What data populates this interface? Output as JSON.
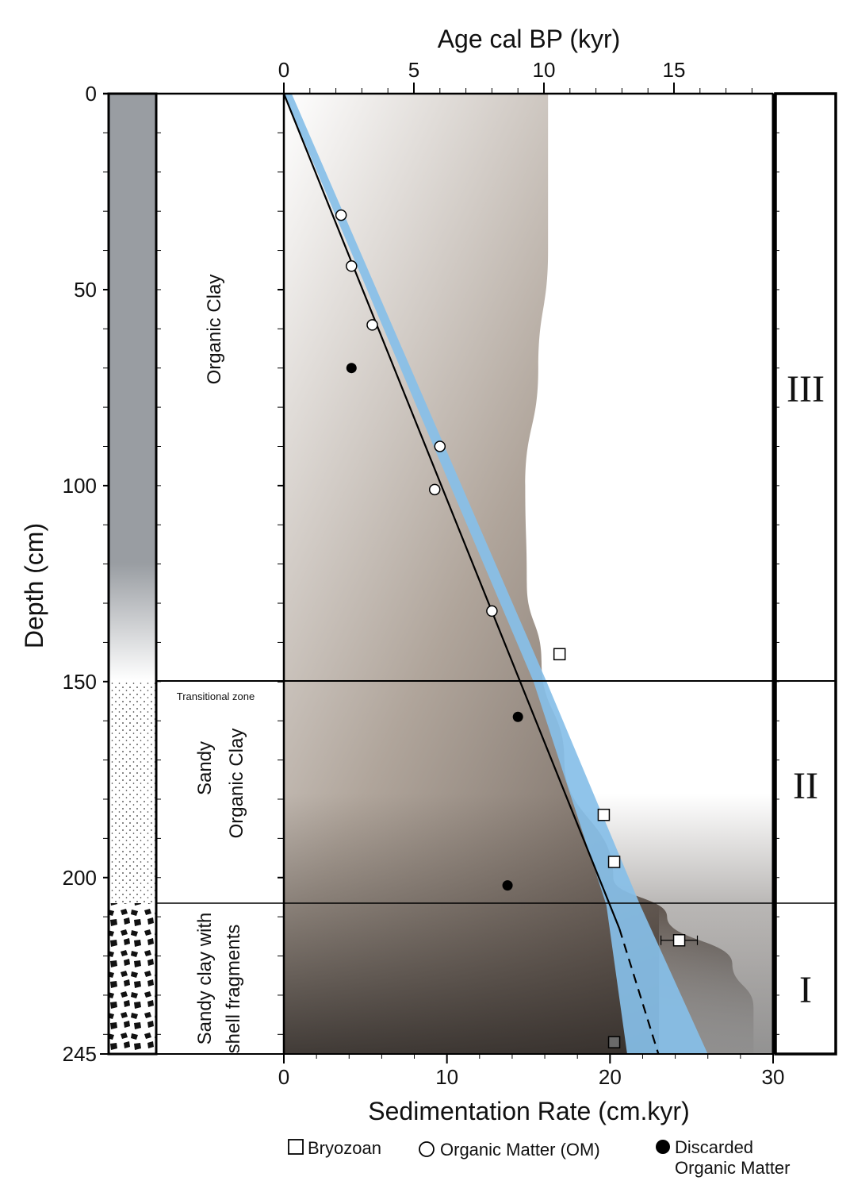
{
  "chart_data": {
    "type": "scatter",
    "title": "",
    "top_axis": {
      "label": "Age cal BP (kyr)",
      "range": [
        0,
        19
      ],
      "ticks": [
        "0",
        "5",
        "10",
        "15"
      ]
    },
    "bottom_axis": {
      "label": "Sedimentation Rate (cm.kyr)",
      "range": [
        0,
        30
      ],
      "ticks": [
        "0",
        "10",
        "20",
        "30"
      ]
    },
    "left_axis": {
      "label": "Depth (cm)",
      "range": [
        0,
        245
      ],
      "ticks": [
        "0",
        "50",
        "100",
        "150",
        "200",
        "245"
      ],
      "inverted": true
    },
    "lithology": {
      "organic_clay": "Organic Clay",
      "transitional": "Transitional zone",
      "sandy_organic_line1": "Sandy",
      "sandy_organic_line2": "Organic Clay",
      "shell_line1": "Sandy clay with",
      "shell_line2": "shell fragments"
    },
    "units": [
      {
        "label": "III",
        "depth_range": [
          0,
          150
        ]
      },
      {
        "label": "II",
        "depth_range": [
          150,
          207
        ]
      },
      {
        "label": "I",
        "depth_range": [
          207,
          245
        ]
      }
    ],
    "series": [
      {
        "name": "Bryozoan",
        "marker": "square",
        "points": [
          {
            "age": 10.6,
            "depth": 143
          },
          {
            "age": 12.3,
            "depth": 184
          },
          {
            "age": 12.7,
            "depth": 196
          },
          {
            "age": 15.2,
            "depth": 216,
            "xerr": 0.7
          },
          {
            "age": 12.7,
            "depth": 242
          }
        ]
      },
      {
        "name": "Organic Matter (OM)",
        "marker": "open-circle",
        "points": [
          {
            "age": 2.2,
            "depth": 31
          },
          {
            "age": 2.6,
            "depth": 44
          },
          {
            "age": 3.4,
            "depth": 59
          },
          {
            "age": 6.0,
            "depth": 90
          },
          {
            "age": 5.8,
            "depth": 101
          },
          {
            "age": 8.0,
            "depth": 132
          }
        ]
      },
      {
        "name": "Discarded Organic Matter",
        "marker": "filled-circle",
        "points": [
          {
            "age": 2.6,
            "depth": 70
          },
          {
            "age": 9.0,
            "depth": 159
          },
          {
            "age": 8.6,
            "depth": 202
          }
        ]
      }
    ],
    "age_model": {
      "line": [
        {
          "age": 0,
          "depth": 0
        },
        {
          "age": 12.9,
          "depth": 213
        }
      ],
      "extrapolated": [
        {
          "age": 12.9,
          "depth": 213
        },
        {
          "age": 14.4,
          "depth": 245
        }
      ],
      "confidence_left": [
        {
          "age": 0,
          "depth": 0
        },
        {
          "age": 9.6,
          "depth": 150
        },
        {
          "age": 12.4,
          "depth": 207
        },
        {
          "age": 13.2,
          "depth": 245
        }
      ],
      "confidence_right": [
        {
          "age": 0.3,
          "depth": 0
        },
        {
          "age": 10.1,
          "depth": 150
        },
        {
          "age": 13.7,
          "depth": 207
        },
        {
          "age": 16.3,
          "depth": 245
        }
      ]
    },
    "sedimentation_rate_profile": [
      {
        "rate": 16.2,
        "depth": 0
      },
      {
        "rate": 16.2,
        "depth": 40
      },
      {
        "rate": 15.6,
        "depth": 70
      },
      {
        "rate": 14.8,
        "depth": 100
      },
      {
        "rate": 14.9,
        "depth": 125
      },
      {
        "rate": 15.8,
        "depth": 145
      },
      {
        "rate": 17.2,
        "depth": 170
      },
      {
        "rate": 20.2,
        "depth": 200
      },
      {
        "rate": 23.5,
        "depth": 210
      },
      {
        "rate": 27.5,
        "depth": 222
      },
      {
        "rate": 28.8,
        "depth": 233
      },
      {
        "rate": 28.8,
        "depth": 245
      }
    ],
    "legend": {
      "position": "bottom",
      "items": [
        "Bryozoan",
        "Organic Matter (OM)",
        "Discarded",
        "Organic Matter"
      ]
    }
  }
}
